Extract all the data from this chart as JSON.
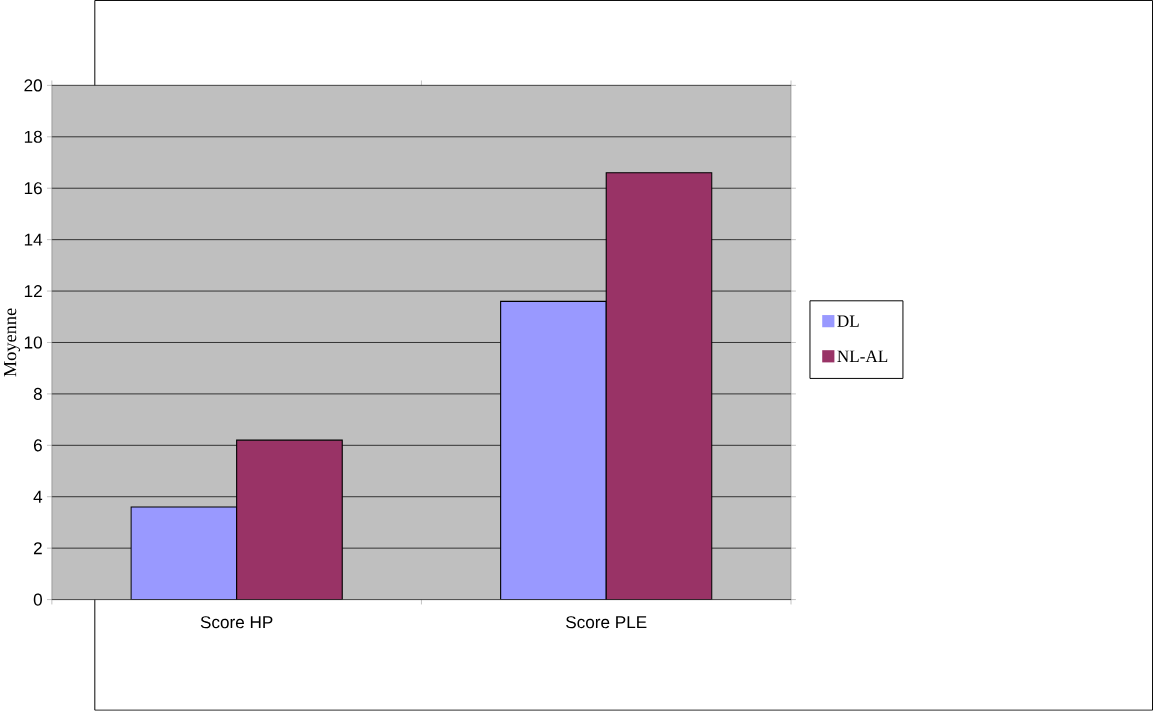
{
  "chart_data": {
    "type": "bar",
    "ylabel": "Moyenne",
    "categories": [
      "Score HP",
      "Score PLE"
    ],
    "series": [
      {
        "name": "DL",
        "color": "#9999ff",
        "values": [
          3.6,
          11.6
        ]
      },
      {
        "name": "NL-AL",
        "color": "#993366",
        "values": [
          6.2,
          16.6
        ]
      }
    ],
    "ylim": [
      0,
      20
    ],
    "yticks": [
      0,
      2,
      4,
      6,
      8,
      10,
      12,
      14,
      16,
      18,
      20
    ],
    "grid": "y",
    "legend": "right"
  }
}
